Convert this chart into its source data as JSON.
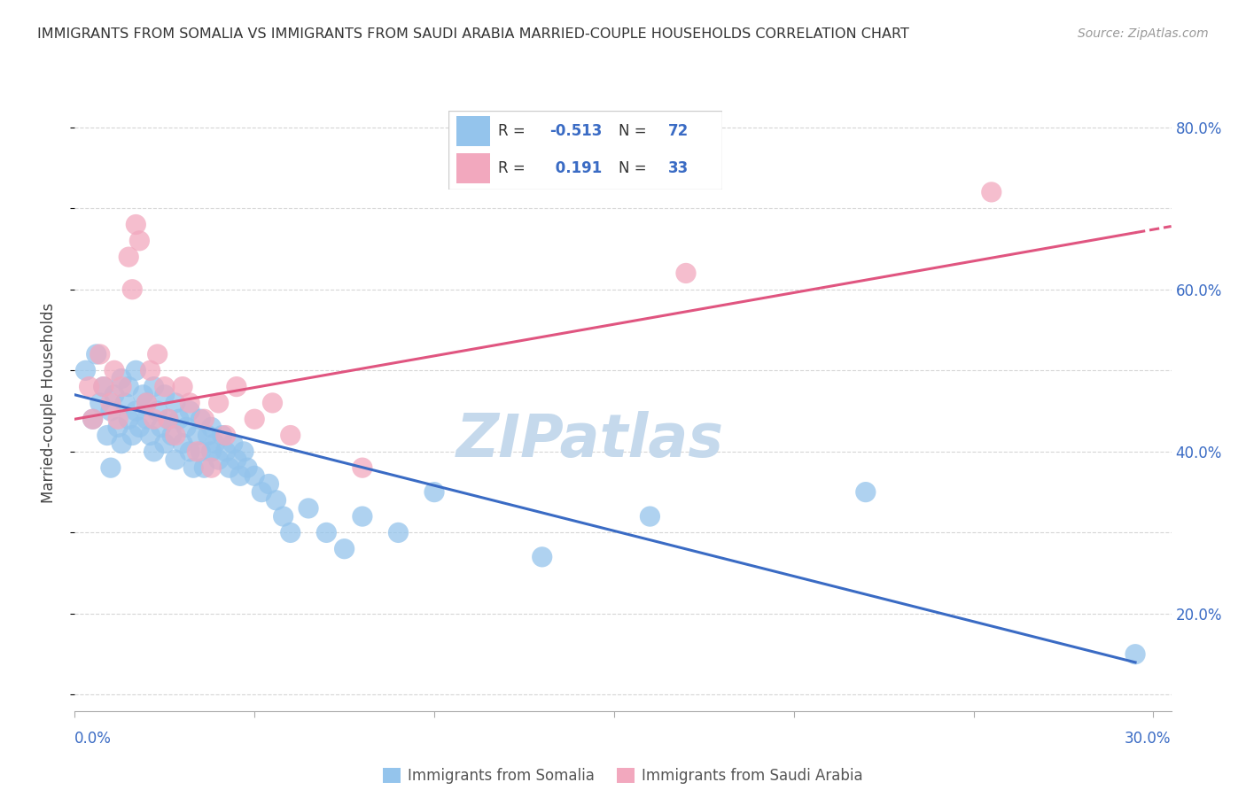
{
  "title": "IMMIGRANTS FROM SOMALIA VS IMMIGRANTS FROM SAUDI ARABIA MARRIED-COUPLE HOUSEHOLDS CORRELATION CHART",
  "source": "Source: ZipAtlas.com",
  "xlabel_somalia": "Immigrants from Somalia",
  "xlabel_saudi": "Immigrants from Saudi Arabia",
  "ylabel": "Married-couple Households",
  "xlim": [
    0.0,
    0.305
  ],
  "ylim": [
    0.08,
    0.84
  ],
  "R_somalia": -0.513,
  "N_somalia": 72,
  "R_saudi": 0.191,
  "N_saudi": 33,
  "color_somalia": "#94C4EC",
  "color_saudi": "#F2A8BE",
  "line_color_somalia": "#3A6BC4",
  "line_color_saudi": "#E05580",
  "watermark": "ZIPatlas",
  "watermark_color": "#C5D9EC",
  "som_line_x0": 0.0,
  "som_line_y0": 0.47,
  "som_line_x1": 0.295,
  "som_line_y1": 0.14,
  "sau_line_x0": 0.0,
  "sau_line_y0": 0.44,
  "sau_line_x1": 0.295,
  "sau_line_y1": 0.67,
  "somalia_x": [
    0.003,
    0.005,
    0.006,
    0.007,
    0.008,
    0.009,
    0.01,
    0.01,
    0.011,
    0.012,
    0.013,
    0.013,
    0.014,
    0.015,
    0.015,
    0.016,
    0.017,
    0.017,
    0.018,
    0.019,
    0.02,
    0.02,
    0.021,
    0.022,
    0.022,
    0.023,
    0.024,
    0.025,
    0.025,
    0.026,
    0.027,
    0.028,
    0.028,
    0.029,
    0.03,
    0.031,
    0.032,
    0.032,
    0.033,
    0.034,
    0.035,
    0.035,
    0.036,
    0.037,
    0.038,
    0.038,
    0.039,
    0.04,
    0.041,
    0.042,
    0.043,
    0.044,
    0.045,
    0.046,
    0.047,
    0.048,
    0.05,
    0.052,
    0.054,
    0.056,
    0.058,
    0.06,
    0.065,
    0.07,
    0.075,
    0.08,
    0.09,
    0.1,
    0.13,
    0.16,
    0.22,
    0.295
  ],
  "somalia_y": [
    0.5,
    0.44,
    0.52,
    0.46,
    0.48,
    0.42,
    0.45,
    0.38,
    0.47,
    0.43,
    0.49,
    0.41,
    0.46,
    0.44,
    0.48,
    0.42,
    0.5,
    0.45,
    0.43,
    0.47,
    0.44,
    0.46,
    0.42,
    0.48,
    0.4,
    0.45,
    0.43,
    0.47,
    0.41,
    0.44,
    0.42,
    0.46,
    0.39,
    0.44,
    0.41,
    0.43,
    0.4,
    0.45,
    0.38,
    0.42,
    0.4,
    0.44,
    0.38,
    0.42,
    0.4,
    0.43,
    0.41,
    0.39,
    0.42,
    0.4,
    0.38,
    0.41,
    0.39,
    0.37,
    0.4,
    0.38,
    0.37,
    0.35,
    0.36,
    0.34,
    0.32,
    0.3,
    0.33,
    0.3,
    0.28,
    0.32,
    0.3,
    0.35,
    0.27,
    0.32,
    0.35,
    0.15
  ],
  "saudi_x": [
    0.004,
    0.005,
    0.007,
    0.008,
    0.01,
    0.011,
    0.012,
    0.013,
    0.015,
    0.016,
    0.017,
    0.018,
    0.02,
    0.021,
    0.022,
    0.023,
    0.025,
    0.026,
    0.028,
    0.03,
    0.032,
    0.034,
    0.036,
    0.038,
    0.04,
    0.042,
    0.045,
    0.05,
    0.055,
    0.06,
    0.08,
    0.17,
    0.255
  ],
  "saudi_y": [
    0.48,
    0.44,
    0.52,
    0.48,
    0.46,
    0.5,
    0.44,
    0.48,
    0.64,
    0.6,
    0.68,
    0.66,
    0.46,
    0.5,
    0.44,
    0.52,
    0.48,
    0.44,
    0.42,
    0.48,
    0.46,
    0.4,
    0.44,
    0.38,
    0.46,
    0.42,
    0.48,
    0.44,
    0.46,
    0.42,
    0.38,
    0.62,
    0.72
  ]
}
